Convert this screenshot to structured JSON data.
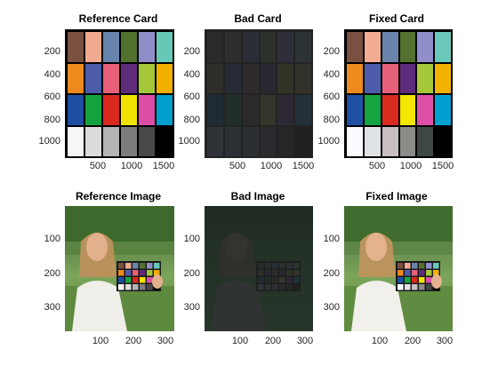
{
  "panels": {
    "ref_card": {
      "title": "Reference Card",
      "yticks": [
        "200",
        "400",
        "600",
        "800",
        "1000"
      ],
      "xticks": [
        "500",
        "1000",
        "1500"
      ]
    },
    "bad_card": {
      "title": "Bad Card",
      "yticks": [
        "200",
        "400",
        "600",
        "800",
        "1000"
      ],
      "xticks": [
        "500",
        "1000",
        "1500"
      ]
    },
    "fixed_card": {
      "title": "Fixed Card",
      "yticks": [
        "200",
        "400",
        "600",
        "800",
        "1000"
      ],
      "xticks": [
        "500",
        "1000",
        "1500"
      ]
    },
    "ref_image": {
      "title": "Reference Image",
      "yticks": [
        "100",
        "200",
        "300"
      ],
      "xticks": [
        "100",
        "200",
        "300"
      ]
    },
    "bad_image": {
      "title": "Bad Image",
      "yticks": [
        "100",
        "200",
        "300"
      ],
      "xticks": [
        "100",
        "200",
        "300"
      ]
    },
    "fixed_image": {
      "title": "Fixed Image",
      "yticks": [
        "100",
        "200",
        "300"
      ],
      "xticks": [
        "100",
        "200",
        "300"
      ]
    }
  },
  "colors": {
    "ref_swatches": [
      "#7a5040",
      "#f0aa90",
      "#6784ad",
      "#52712e",
      "#8f8ec9",
      "#68c8b8",
      "#ec8a1e",
      "#4b5ca9",
      "#e75f78",
      "#5e2c7a",
      "#a3c737",
      "#f1b000",
      "#1d4ea1",
      "#13a33e",
      "#d9291f",
      "#f1e300",
      "#dc4ea6",
      "#009fce",
      "#f6f6f6",
      "#dcdcdc",
      "#b5b5b5",
      "#7d7d7d",
      "#494949",
      "#000000"
    ],
    "bad_swatches": [
      "#2a2a2a",
      "#2e2e30",
      "#2b2e36",
      "#2c312b",
      "#2d2e38",
      "#2b3334",
      "#2e2d2a",
      "#262a34",
      "#2f2a2e",
      "#2a2730",
      "#2f3427",
      "#33322a",
      "#1f2a35",
      "#1f2e27",
      "#2c2a28",
      "#35362b",
      "#2e2833",
      "#23303a",
      "#2f3236",
      "#2c3034",
      "#2c2f32",
      "#292b2e",
      "#262727",
      "#202020"
    ],
    "fixed_swatches": [
      "#7a5140",
      "#f2ac94",
      "#6b84ad",
      "#54722e",
      "#908fca",
      "#6ac8ba",
      "#ee8a1e",
      "#4d5daa",
      "#e7607a",
      "#5e2c7c",
      "#a5c73a",
      "#f1b200",
      "#1e50a3",
      "#14a540",
      "#d92a20",
      "#f3e500",
      "#de50a8",
      "#00a1d0",
      "#fafcff",
      "#e0e2e6",
      "#c7bfc1",
      "#8a8c88",
      "#3e4744",
      "#000000"
    ]
  }
}
